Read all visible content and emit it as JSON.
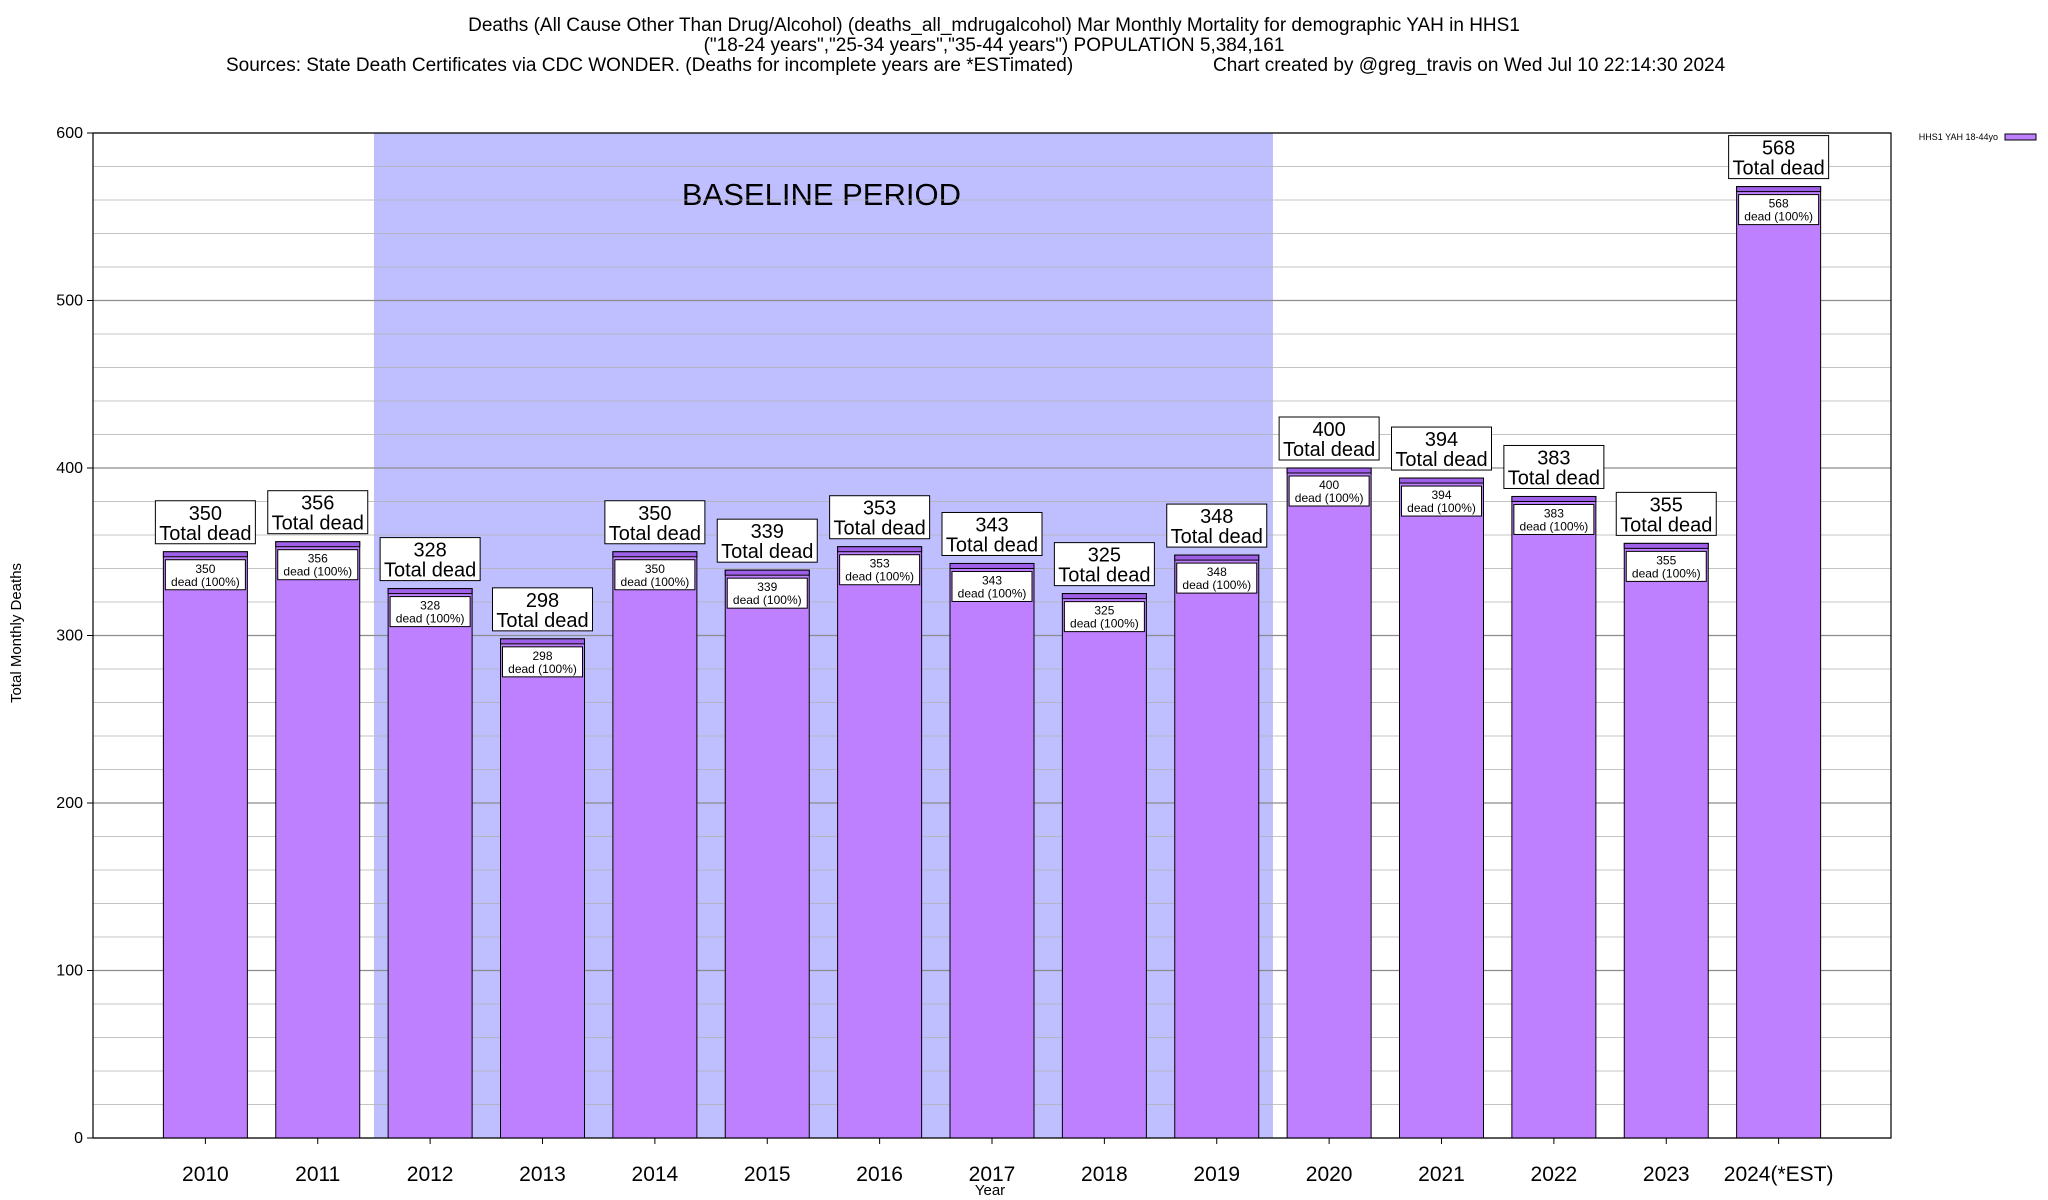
{
  "header": {
    "title_line1": "Deaths (All Cause Other Than Drug/Alcohol) (deaths_all_mdrugalcohol) Mar Monthly Mortality for demographic YAH in HHS1",
    "title_line2": "(\"18-24 years\",\"25-34 years\",\"35-44 years\") POPULATION 5,384,161",
    "sources": "Sources: State Death Certificates via CDC WONDER. (Deaths for incomplete years are *ESTimated)",
    "credit": "Chart created by @greg_travis on Wed Jul 10 22:14:30 2024"
  },
  "colors": {
    "bar_fill": "#bf80ff",
    "bar_top_fill": "#9f60e8",
    "baseline_fill": "#bfbfff",
    "grid": "#b0b0b0",
    "axis": "#000000"
  },
  "chart_data": {
    "type": "bar",
    "title": "Deaths (All Cause Other Than Drug/Alcohol) (deaths_all_mdrugalcohol) Mar Monthly Mortality for demographic YAH in HHS1",
    "xlabel": "Year",
    "ylabel": "Total Monthly Deaths",
    "ylim": [
      0,
      600
    ],
    "yticks": [
      0,
      100,
      200,
      300,
      400,
      500,
      600
    ],
    "minor_grid_step": 20,
    "grid": true,
    "legend_position": "top-right",
    "categories": [
      "2010",
      "2011",
      "2012",
      "2013",
      "2014",
      "2015",
      "2016",
      "2017",
      "2018",
      "2019",
      "2020",
      "2021",
      "2022",
      "2023",
      "2024(*EST)"
    ],
    "series": [
      {
        "name": "HHS1 YAH 18-44yo",
        "values": [
          350,
          356,
          328,
          298,
          350,
          339,
          353,
          343,
          325,
          348,
          400,
          394,
          383,
          355,
          568
        ]
      }
    ],
    "total_label_suffix": "Total dead",
    "inner_label_suffix": "dead (100%)",
    "baseline_period": {
      "label": "BASELINE PERIOD",
      "start_category": "2012",
      "end_category": "2019"
    }
  }
}
